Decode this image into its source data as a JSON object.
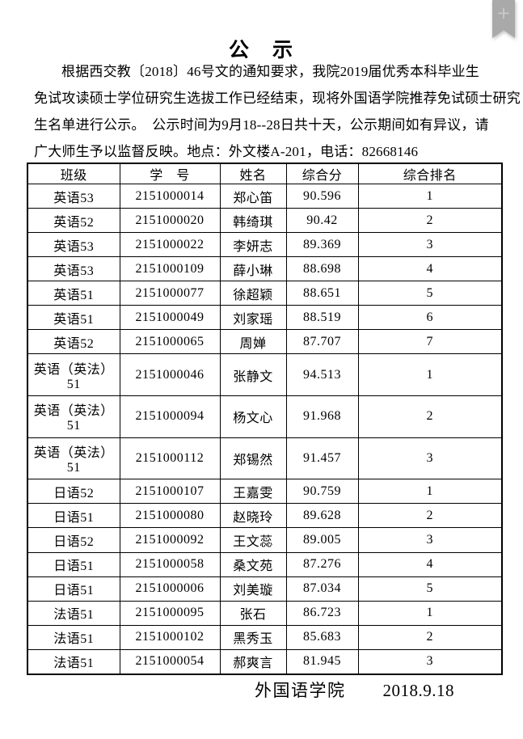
{
  "ui": {
    "bookmark_plus": "+"
  },
  "doc": {
    "title": "公　示",
    "intro_lines": [
      "根据西交教〔2018〕46号文的通知要求，我院2019届优秀本科毕业生",
      "免试攻读硕士学位研究生选拔工作已经结束，现将外国语学院推荐免试硕士研究",
      "生名单进行公示。　公示时间为9月18--28日共十天，公示期间如有异议，请",
      "广大师生予以监督反映。地点：外文楼A-201，电话：82668146"
    ],
    "footer": {
      "org": "外国语学院",
      "date": "2018.9.18"
    }
  },
  "table": {
    "headers": [
      "班级",
      "学　号",
      "姓名",
      "综合分",
      "综合排名"
    ],
    "rows": [
      [
        "英语53",
        "2151000014",
        "郑心笛",
        "90.596",
        "1"
      ],
      [
        "英语52",
        "2151000020",
        "韩绮琪",
        "90.42",
        "2"
      ],
      [
        "英语53",
        "2151000022",
        "李妍志",
        "89.369",
        "3"
      ],
      [
        "英语53",
        "2151000109",
        "薛小琳",
        "88.698",
        "4"
      ],
      [
        "英语51",
        "2151000077",
        "徐超颖",
        "88.651",
        "5"
      ],
      [
        "英语51",
        "2151000049",
        "刘家瑶",
        "88.519",
        "6"
      ],
      [
        "英语52",
        "2151000065",
        "周婵",
        "87.707",
        "7"
      ],
      [
        "英语（英法）51",
        "2151000046",
        "张静文",
        "94.513",
        "1"
      ],
      [
        "英语（英法）51",
        "2151000094",
        "杨文心",
        "91.968",
        "2"
      ],
      [
        "英语（英法）51",
        "2151000112",
        "郑锡然",
        "91.457",
        "3"
      ],
      [
        "日语52",
        "2151000107",
        "王嘉雯",
        "90.759",
        "1"
      ],
      [
        "日语51",
        "2151000080",
        "赵晓玲",
        "89.628",
        "2"
      ],
      [
        "日语52",
        "2151000092",
        "王文蕊",
        "89.005",
        "3"
      ],
      [
        "日语51",
        "2151000058",
        "桑文苑",
        "87.276",
        "4"
      ],
      [
        "日语51",
        "2151000006",
        "刘美璇",
        "87.034",
        "5"
      ],
      [
        "法语51",
        "2151000095",
        "张石",
        "86.723",
        "1"
      ],
      [
        "法语51",
        "2151000102",
        "黑秀玉",
        "85.683",
        "2"
      ],
      [
        "法语51",
        "2151000054",
        "郝爽言",
        "81.945",
        "3"
      ]
    ]
  },
  "colors": {
    "background": "#ffffff",
    "text": "#000000",
    "table_border": "#000000",
    "bookmark": "#a9a9a9",
    "bookmark_plus": "#c9c9c9"
  }
}
